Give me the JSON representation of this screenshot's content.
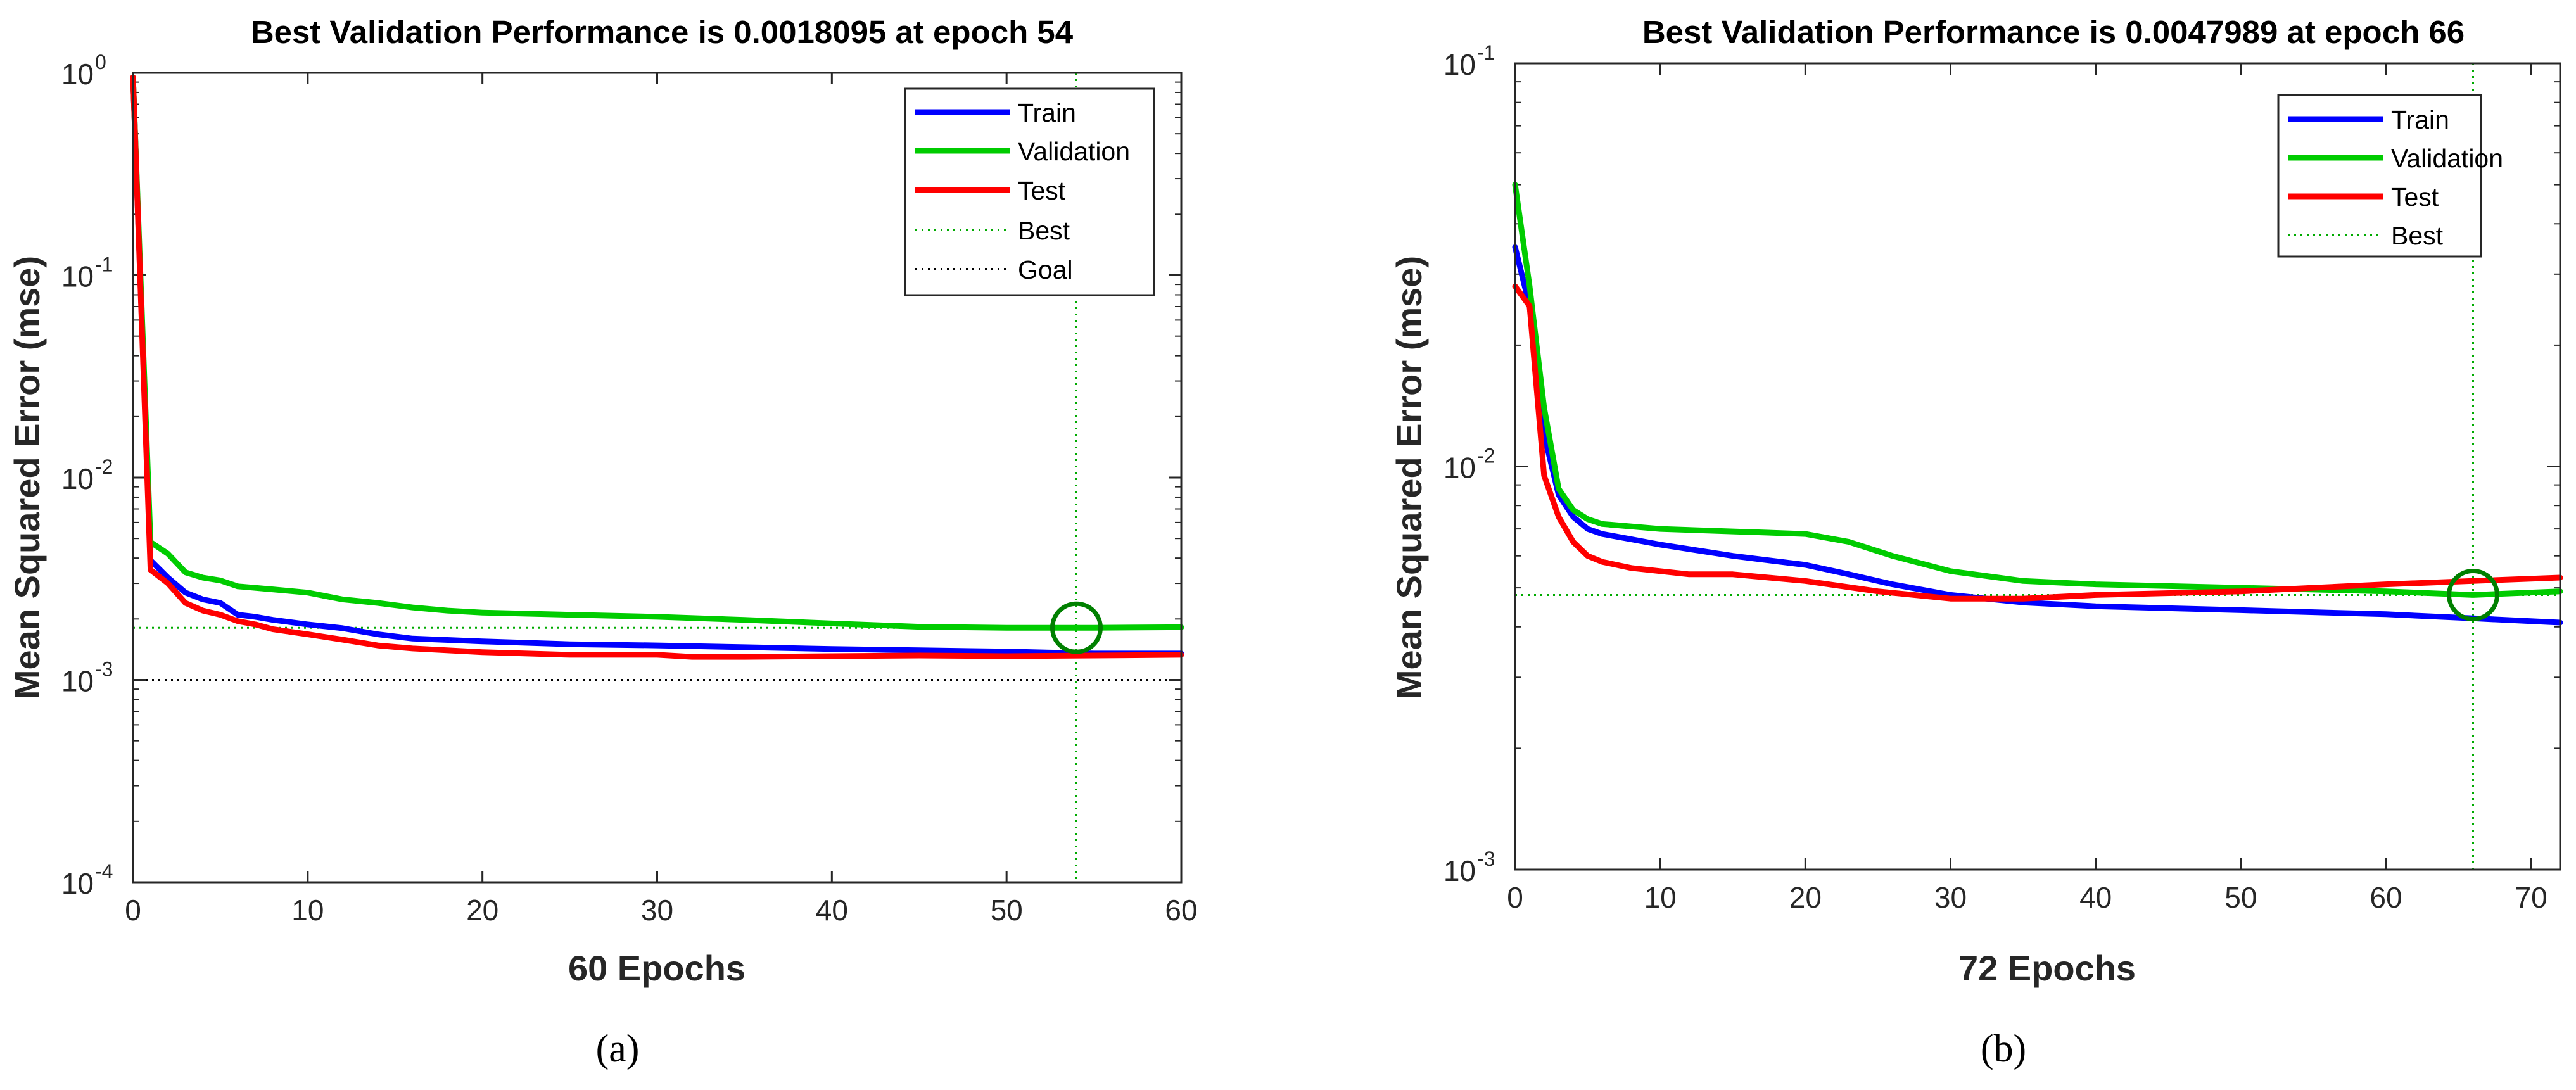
{
  "chart_data": [
    {
      "id": "a",
      "type": "line",
      "title": "Best Validation Performance is 0.0018095 at epoch 54",
      "xlabel": "60 Epochs",
      "ylabel": "Mean Squared Error  (mse)",
      "yscale": "log",
      "xlim": [
        0,
        60
      ],
      "ylim": [
        0.0001,
        1
      ],
      "x_ticks": [
        "0",
        "10",
        "20",
        "30",
        "40",
        "50",
        "60"
      ],
      "y_ticks": [
        {
          "base": "10",
          "exp": "0",
          "value": 1
        },
        {
          "base": "10",
          "exp": "-1",
          "value": 0.1
        },
        {
          "base": "10",
          "exp": "-2",
          "value": 0.01
        },
        {
          "base": "10",
          "exp": "-3",
          "value": 0.001
        },
        {
          "base": "10",
          "exp": "-4",
          "value": 0.0001
        }
      ],
      "caption": "(a)",
      "legend_position": "top-right",
      "series": [
        {
          "name": "Train",
          "color": "#0000ff",
          "x": [
            0,
            1,
            2,
            3,
            4,
            5,
            6,
            7,
            8,
            10,
            12,
            14,
            16,
            20,
            25,
            30,
            35,
            40,
            45,
            50,
            55,
            60
          ],
          "y": [
            0.95,
            0.0039,
            0.0032,
            0.0027,
            0.0025,
            0.0024,
            0.0021,
            0.00205,
            0.00198,
            0.00188,
            0.0018,
            0.00168,
            0.0016,
            0.00155,
            0.0015,
            0.00148,
            0.00145,
            0.00142,
            0.0014,
            0.00138,
            0.00135,
            0.00135
          ]
        },
        {
          "name": "Validation",
          "color": "#00cc00",
          "x": [
            0,
            1,
            2,
            3,
            4,
            5,
            6,
            8,
            10,
            12,
            14,
            16,
            18,
            20,
            25,
            30,
            35,
            40,
            45,
            50,
            55,
            60
          ],
          "y": [
            0.95,
            0.0048,
            0.0042,
            0.0034,
            0.0032,
            0.0031,
            0.0029,
            0.0028,
            0.0027,
            0.0025,
            0.0024,
            0.00228,
            0.0022,
            0.00215,
            0.0021,
            0.00205,
            0.00198,
            0.0019,
            0.00183,
            0.00181,
            0.00181,
            0.00182
          ]
        },
        {
          "name": "Test",
          "color": "#ff0000",
          "x": [
            0,
            1,
            2,
            3,
            4,
            5,
            6,
            7,
            8,
            10,
            12,
            14,
            16,
            20,
            25,
            30,
            32,
            35,
            40,
            45,
            50,
            55,
            60
          ],
          "y": [
            0.95,
            0.0035,
            0.003,
            0.0024,
            0.0022,
            0.0021,
            0.00195,
            0.00188,
            0.00178,
            0.00168,
            0.00158,
            0.00148,
            0.00143,
            0.00137,
            0.00133,
            0.00133,
            0.0013,
            0.0013,
            0.00131,
            0.00132,
            0.00131,
            0.00132,
            0.00133
          ]
        }
      ],
      "best": {
        "name": "Best",
        "epoch": 54,
        "value": 0.0018095,
        "color": "#00aa00"
      },
      "goal": {
        "name": "Goal",
        "value": 0.001,
        "color": "#000000"
      }
    },
    {
      "id": "b",
      "type": "line",
      "title": "Best Validation Performance is 0.0047989 at epoch 66",
      "xlabel": "72 Epochs",
      "ylabel": "Mean Squared Error  (mse)",
      "yscale": "log",
      "xlim": [
        0,
        72
      ],
      "ylim": [
        0.001,
        0.1
      ],
      "x_ticks": [
        "0",
        "10",
        "20",
        "30",
        "40",
        "50",
        "60",
        "70"
      ],
      "y_ticks": [
        {
          "base": "10",
          "exp": "-1",
          "value": 0.1
        },
        {
          "base": "10",
          "exp": "-2",
          "value": 0.01
        },
        {
          "base": "10",
          "exp": "-3",
          "value": 0.001
        }
      ],
      "caption": "(b)",
      "legend_position": "top-right",
      "series": [
        {
          "name": "Train",
          "color": "#0000ff",
          "x": [
            0,
            1,
            2,
            3,
            4,
            5,
            6,
            8,
            10,
            15,
            20,
            23,
            26,
            30,
            35,
            40,
            50,
            60,
            66,
            72
          ],
          "y": [
            0.035,
            0.025,
            0.012,
            0.0085,
            0.0075,
            0.007,
            0.0068,
            0.0066,
            0.0064,
            0.006,
            0.0057,
            0.0054,
            0.0051,
            0.0048,
            0.0046,
            0.0045,
            0.0044,
            0.0043,
            0.0042,
            0.0041
          ]
        },
        {
          "name": "Validation",
          "color": "#00cc00",
          "x": [
            0,
            1,
            2,
            3,
            4,
            5,
            6,
            10,
            15,
            20,
            23,
            26,
            30,
            35,
            40,
            50,
            60,
            66,
            72
          ],
          "y": [
            0.05,
            0.028,
            0.014,
            0.0088,
            0.0078,
            0.0074,
            0.0072,
            0.007,
            0.0069,
            0.0068,
            0.0065,
            0.006,
            0.0055,
            0.0052,
            0.0051,
            0.005,
            0.0049,
            0.0048,
            0.0049
          ]
        },
        {
          "name": "Test",
          "color": "#ff0000",
          "x": [
            0,
            1,
            2,
            3,
            4,
            5,
            6,
            8,
            10,
            12,
            15,
            20,
            25,
            30,
            35,
            40,
            50,
            55,
            60,
            66,
            72
          ],
          "y": [
            0.028,
            0.025,
            0.0095,
            0.0075,
            0.0065,
            0.006,
            0.0058,
            0.0056,
            0.0055,
            0.0054,
            0.0054,
            0.0052,
            0.0049,
            0.0047,
            0.0047,
            0.0048,
            0.0049,
            0.005,
            0.0051,
            0.0052,
            0.0053
          ]
        }
      ],
      "best": {
        "name": "Best",
        "epoch": 66,
        "value": 0.0047989,
        "color": "#00aa00"
      }
    }
  ]
}
